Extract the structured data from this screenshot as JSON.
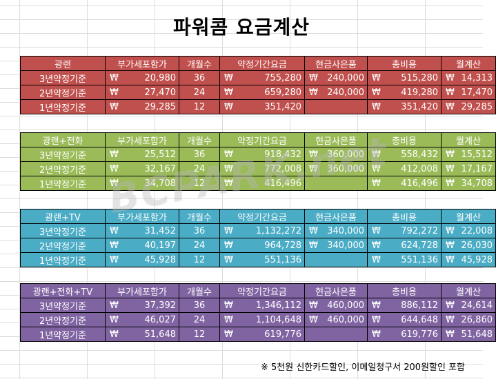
{
  "title": "파워콤 요금계산",
  "watermark": "BCPARK.net",
  "currency_symbol": "₩",
  "headers": [
    "부가세포함가",
    "개월수",
    "약정기간요금",
    "현금사은품",
    "총비용",
    "월계산"
  ],
  "blocks": [
    {
      "name": "광랜",
      "color": "#c0504d",
      "rows": [
        {
          "label": "3년약정기준",
          "price": "20,980",
          "months": "36",
          "period": "755,280",
          "gift": "240,000",
          "total": "515,280",
          "monthly": "14,313"
        },
        {
          "label": "2년약정기준",
          "price": "27,470",
          "months": "24",
          "period": "659,280",
          "gift": "240,000",
          "total": "419,280",
          "monthly": "17,470"
        },
        {
          "label": "1년약정기준",
          "price": "29,285",
          "months": "12",
          "period": "351,420",
          "gift": "",
          "total": "351,420",
          "monthly": "29,285"
        }
      ]
    },
    {
      "name": "광랜+전화",
      "color": "#9bbb59",
      "rows": [
        {
          "label": "3년약정기준",
          "price": "25,512",
          "months": "36",
          "period": "918,432",
          "gift": "360,000",
          "total": "558,432",
          "monthly": "15,512"
        },
        {
          "label": "2년약정기준",
          "price": "32,167",
          "months": "24",
          "period": "772,008",
          "gift": "360,000",
          "total": "412,008",
          "monthly": "17,167"
        },
        {
          "label": "1년약정기준",
          "price": "34,708",
          "months": "12",
          "period": "416,496",
          "gift": "",
          "total": "416,496",
          "monthly": "34,708"
        }
      ]
    },
    {
      "name": "광랜+TV",
      "color": "#4bacc6",
      "rows": [
        {
          "label": "3년약정기준",
          "price": "31,452",
          "months": "36",
          "period": "1,132,272",
          "gift": "340,000",
          "total": "792,272",
          "monthly": "22,008"
        },
        {
          "label": "2년약정기준",
          "price": "40,197",
          "months": "24",
          "period": "964,728",
          "gift": "340,000",
          "total": "624,728",
          "monthly": "26,030"
        },
        {
          "label": "1년약정기준",
          "price": "45,928",
          "months": "12",
          "period": "551,136",
          "gift": "",
          "total": "551,136",
          "monthly": "45,928"
        }
      ]
    },
    {
      "name": "광랜+전화+TV",
      "color": "#8064a2",
      "rows": [
        {
          "label": "3년약정기준",
          "price": "37,392",
          "months": "36",
          "period": "1,346,112",
          "gift": "460,000",
          "total": "886,112",
          "monthly": "24,614"
        },
        {
          "label": "2년약정기준",
          "price": "46,027",
          "months": "24",
          "period": "1,104,648",
          "gift": "460,000",
          "total": "644,648",
          "monthly": "26,860"
        },
        {
          "label": "1년약정기준",
          "price": "51,648",
          "months": "12",
          "period": "619,776",
          "gift": "",
          "total": "619,776",
          "monthly": "51,648"
        }
      ]
    }
  ],
  "note": "※ 5천원 신한카드할인, 이메일청구서 200원할인 포함"
}
